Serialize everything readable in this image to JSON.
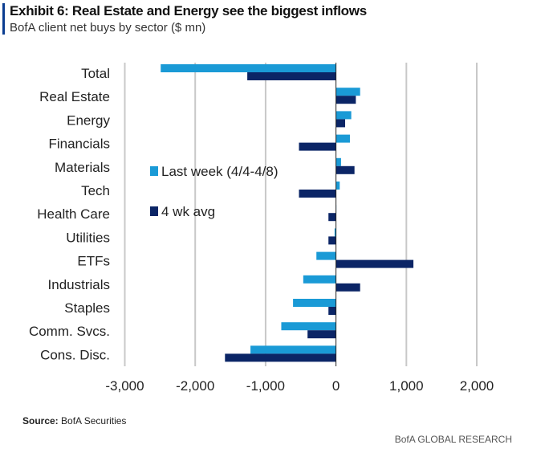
{
  "header": {
    "title": "Exhibit 6: Real Estate and Energy see the biggest inflows",
    "subtitle": "BofA client net buys by sector ($ mn)"
  },
  "chart_data": {
    "type": "bar",
    "orientation": "horizontal",
    "title": "Exhibit 6: Real Estate and Energy see the biggest inflows",
    "subtitle": "BofA client net buys by sector ($ mn)",
    "categories": [
      "Total",
      "Real Estate",
      "Energy",
      "Financials",
      "Materials",
      "Tech",
      "Health Care",
      "Utilities",
      "ETFs",
      "Industrials",
      "Staples",
      "Comm. Svcs.",
      "Cons. Disc."
    ],
    "series": [
      {
        "name": "Last week (4/4-4/8)",
        "color": "#1a9ad6",
        "values": [
          -2490,
          343,
          217,
          198,
          72,
          53,
          0,
          -20,
          -278,
          -465,
          -610,
          -777,
          -1215
        ]
      },
      {
        "name": "4 wk avg",
        "color": "#0b2566",
        "values": [
          -1260,
          282,
          130,
          -526,
          263,
          -526,
          -107,
          -107,
          1100,
          343,
          -107,
          -404,
          -1577
        ]
      }
    ],
    "xlim": [
      -3000,
      2000
    ],
    "xticks": [
      -3000,
      -2000,
      -1000,
      0,
      1000,
      2000
    ],
    "xtick_labels": [
      "-3,000",
      "-2,000",
      "-1,000",
      "0",
      "1,000",
      "2,000"
    ],
    "grid": true,
    "legend_placement": "center-left"
  },
  "source": {
    "label": "Source:",
    "text": "BofA Securities"
  },
  "footer": "BofA GLOBAL RESEARCH"
}
